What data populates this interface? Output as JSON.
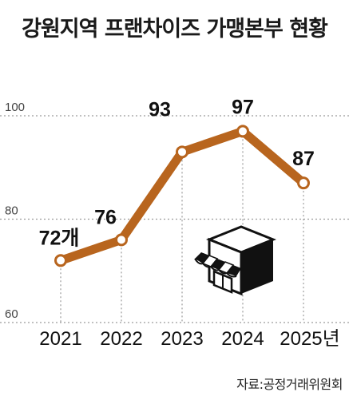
{
  "chart_data": {
    "type": "line",
    "title": "강원지역 프랜차이즈 가맹본부 현황",
    "categories": [
      "2021",
      "2022",
      "2023",
      "2024",
      "2025년"
    ],
    "series": [
      {
        "values": [
          72,
          76,
          93,
          97,
          87
        ]
      }
    ],
    "data_labels": [
      "72개",
      "76",
      "93",
      "97",
      "87"
    ],
    "y_ticks": [
      "100",
      "80",
      "60"
    ],
    "ylim": [
      60,
      100
    ],
    "grid": true,
    "colors": {
      "line": "#b8651e",
      "marker_fill": "#ffffff",
      "grid": "#9a9a9a"
    }
  },
  "source": "자료:공정거래위원회",
  "icons": [
    "storefront-icon"
  ]
}
